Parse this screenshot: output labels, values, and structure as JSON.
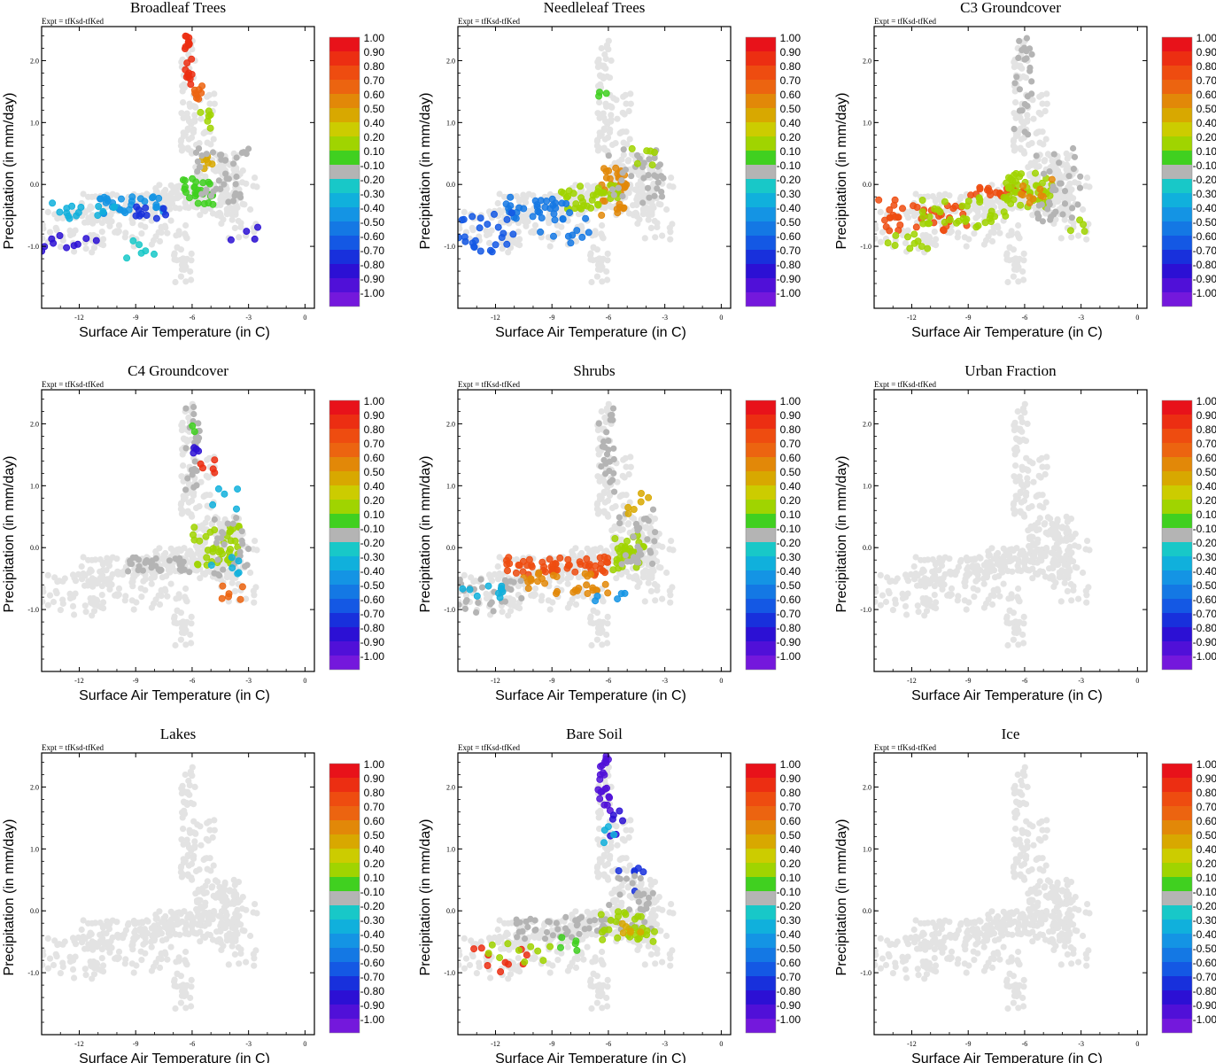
{
  "figure": {
    "expt_label": "Expt = tfKsd-tfKed",
    "xlabel": "Surface Air Temperature (in C)",
    "ylabel": "Precipitation (in mm/day)",
    "xlim": [
      -14,
      0.5
    ],
    "ylim": [
      -2.0,
      2.55
    ],
    "xticks": [
      -12,
      -9,
      -6,
      -3,
      0
    ],
    "yticks": [
      2.0,
      1.0,
      0.0,
      -1.0
    ],
    "xtick_labels": [
      "-12",
      "-9",
      "-6",
      "-3",
      "0"
    ],
    "ytick_labels": [
      "2.0",
      "1.0",
      "0.0",
      "-1.0"
    ]
  },
  "colorbar": {
    "labels": [
      "1.00",
      "0.90",
      "0.80",
      "0.70",
      "0.60",
      "0.50",
      "0.40",
      "0.20",
      "0.10",
      "-0.10",
      "-0.20",
      "-0.30",
      "-0.40",
      "-0.50",
      "-0.60",
      "-0.70",
      "-0.80",
      "-0.90",
      "-1.00"
    ],
    "colors": [
      "#e8121a",
      "#ec2e12",
      "#ee4c10",
      "#ec6410",
      "#e28808",
      "#d8a800",
      "#cccc00",
      "#a0d400",
      "#40d020",
      "#b4b4b4",
      "#18c8c8",
      "#10b0dc",
      "#1494e4",
      "#1478e4",
      "#1458e4",
      "#1830dc",
      "#2c10d4",
      "#5010d8",
      "#7418dc"
    ]
  },
  "colors": {
    "cloud": "#e3e3e3",
    "neutral": "#b4b4b4"
  },
  "chart_data": [
    {
      "type": "scatter",
      "title": "Broadleaf Trees",
      "xlabel": "Surface Air Temperature (in C)",
      "ylabel": "Precipitation (in mm/day)",
      "xlim": [
        -14,
        0.5
      ],
      "ylim": [
        -2.0,
        2.55
      ],
      "color_scale": [
        -1,
        1
      ],
      "clusters": [
        {
          "x": [
            -6.4,
            -6.0
          ],
          "y": [
            1.6,
            2.5
          ],
          "n": 20,
          "c": 0.9
        },
        {
          "x": [
            -6.0,
            -5.3
          ],
          "y": [
            1.3,
            1.7
          ],
          "n": 8,
          "c": 0.7
        },
        {
          "x": [
            -5.6,
            -4.6
          ],
          "y": [
            0.8,
            1.2
          ],
          "n": 6,
          "c": 0.3
        },
        {
          "x": [
            -5.5,
            -4.8
          ],
          "y": [
            0.2,
            0.5
          ],
          "n": 6,
          "c": 0.5
        },
        {
          "x": [
            -6.5,
            -4.8
          ],
          "y": [
            -0.35,
            0.1
          ],
          "n": 28,
          "c": 0.15
        },
        {
          "x": [
            -5.8,
            -3.0
          ],
          "y": [
            -0.3,
            0.6
          ],
          "n": 40,
          "c": 0.0
        },
        {
          "x": [
            -11.0,
            -7.5
          ],
          "y": [
            -0.5,
            -0.2
          ],
          "n": 30,
          "c": -0.4
        },
        {
          "x": [
            -13.5,
            -10.0
          ],
          "y": [
            -0.55,
            -0.3
          ],
          "n": 15,
          "c": -0.3
        },
        {
          "x": [
            -14.0,
            -11.0
          ],
          "y": [
            -1.1,
            -0.8
          ],
          "n": 10,
          "c": -0.8
        },
        {
          "x": [
            -9.0,
            -7.0
          ],
          "y": [
            -0.55,
            -0.35
          ],
          "n": 10,
          "c": -0.75
        },
        {
          "x": [
            -4.5,
            -2.5
          ],
          "y": [
            -0.9,
            -0.6
          ],
          "n": 4,
          "c": -0.8
        },
        {
          "x": [
            -10.0,
            -8.0
          ],
          "y": [
            -1.2,
            -0.8
          ],
          "n": 6,
          "c": -0.25
        }
      ]
    },
    {
      "type": "scatter",
      "title": "Needleleaf Trees",
      "xlabel": "Surface Air Temperature (in C)",
      "ylabel": "Precipitation (in mm/day)",
      "xlim": [
        -14,
        0.5
      ],
      "ylim": [
        -2.0,
        2.55
      ],
      "color_scale": [
        -1,
        1
      ],
      "clusters": [
        {
          "x": [
            -6.5,
            -5.0
          ],
          "y": [
            -0.5,
            0.3
          ],
          "n": 35,
          "c": 0.6
        },
        {
          "x": [
            -8.5,
            -5.5
          ],
          "y": [
            -0.4,
            0.0
          ],
          "n": 35,
          "c": 0.25
        },
        {
          "x": [
            -6.0,
            -3.0
          ],
          "y": [
            -0.3,
            0.6
          ],
          "n": 35,
          "c": 0.0
        },
        {
          "x": [
            -5.0,
            -3.5
          ],
          "y": [
            0.3,
            0.6
          ],
          "n": 6,
          "c": 0.3
        },
        {
          "x": [
            -11.5,
            -8.0
          ],
          "y": [
            -0.6,
            -0.2
          ],
          "n": 30,
          "c": -0.5
        },
        {
          "x": [
            -14.0,
            -11.0
          ],
          "y": [
            -1.1,
            -0.4
          ],
          "n": 25,
          "c": -0.65
        },
        {
          "x": [
            -10.0,
            -7.0
          ],
          "y": [
            -1.0,
            -0.5
          ],
          "n": 12,
          "c": -0.55
        },
        {
          "x": [
            -6.6,
            -6.0
          ],
          "y": [
            1.2,
            1.5
          ],
          "n": 3,
          "c": 0.15
        }
      ]
    },
    {
      "type": "scatter",
      "title": "C3 Groundcover",
      "xlabel": "Surface Air Temperature (in C)",
      "ylabel": "Precipitation (in mm/day)",
      "xlim": [
        -14,
        0.5
      ],
      "ylim": [
        -2.0,
        2.55
      ],
      "color_scale": [
        -1,
        1
      ],
      "clusters": [
        {
          "x": [
            -13.8,
            -9.0
          ],
          "y": [
            -0.75,
            -0.25
          ],
          "n": 40,
          "c": 0.8
        },
        {
          "x": [
            -9.0,
            -6.0
          ],
          "y": [
            -0.2,
            -0.05
          ],
          "n": 20,
          "c": 0.8
        },
        {
          "x": [
            -11.5,
            -7.0
          ],
          "y": [
            -0.7,
            -0.2
          ],
          "n": 35,
          "c": 0.25
        },
        {
          "x": [
            -7.0,
            -4.5
          ],
          "y": [
            -0.4,
            0.2
          ],
          "n": 45,
          "c": 0.2
        },
        {
          "x": [
            -6.5,
            -4.5
          ],
          "y": [
            -0.3,
            0.1
          ],
          "n": 10,
          "c": 0.55
        },
        {
          "x": [
            -5.5,
            -3.0
          ],
          "y": [
            -0.6,
            0.6
          ],
          "n": 35,
          "c": 0.0
        },
        {
          "x": [
            -6.6,
            -5.6
          ],
          "y": [
            0.8,
            2.4
          ],
          "n": 25,
          "c": 0.0
        },
        {
          "x": [
            -13.5,
            -11.0
          ],
          "y": [
            -1.05,
            -0.8
          ],
          "n": 10,
          "c": 0.2
        },
        {
          "x": [
            -4.0,
            -2.5
          ],
          "y": [
            -0.5,
            -0.8
          ],
          "n": 4,
          "c": 0.25
        }
      ]
    },
    {
      "type": "scatter",
      "title": "C4 Groundcover",
      "xlabel": "Surface Air Temperature (in C)",
      "ylabel": "Precipitation (in mm/day)",
      "xlim": [
        -14,
        0.5
      ],
      "ylim": [
        -2.0,
        2.55
      ],
      "color_scale": [
        -1,
        1
      ],
      "clusters": [
        {
          "x": [
            -9.5,
            -6.0
          ],
          "y": [
            -0.4,
            -0.15
          ],
          "n": 35,
          "c": 0.0
        },
        {
          "x": [
            -6.4,
            -5.6
          ],
          "y": [
            0.9,
            2.3
          ],
          "n": 25,
          "c": 0.0
        },
        {
          "x": [
            -6.0,
            -3.5
          ],
          "y": [
            -0.3,
            0.4
          ],
          "n": 40,
          "c": 0.35
        },
        {
          "x": [
            -5.5,
            -3.0
          ],
          "y": [
            -0.5,
            0.5
          ],
          "n": 25,
          "c": 0.0
        },
        {
          "x": [
            -5.8,
            -4.8
          ],
          "y": [
            1.2,
            1.5
          ],
          "n": 5,
          "c": 0.85
        },
        {
          "x": [
            -6.4,
            -5.6
          ],
          "y": [
            1.5,
            1.7
          ],
          "n": 4,
          "c": -0.85
        },
        {
          "x": [
            -5.5,
            -3.5
          ],
          "y": [
            0.6,
            1.1
          ],
          "n": 5,
          "c": -0.3
        },
        {
          "x": [
            -4.5,
            -3.0
          ],
          "y": [
            -0.95,
            -0.6
          ],
          "n": 6,
          "c": 0.65
        },
        {
          "x": [
            -5.0,
            -3.5
          ],
          "y": [
            -0.5,
            -0.1
          ],
          "n": 6,
          "c": -0.3
        },
        {
          "x": [
            -6.3,
            -5.7
          ],
          "y": [
            1.8,
            2.0
          ],
          "n": 2,
          "c": 0.15
        }
      ]
    },
    {
      "type": "scatter",
      "title": "Shrubs",
      "xlabel": "Surface Air Temperature (in C)",
      "ylabel": "Precipitation (in mm/day)",
      "xlim": [
        -14,
        0.5
      ],
      "ylim": [
        -2.0,
        2.55
      ],
      "color_scale": [
        -1,
        1
      ],
      "clusters": [
        {
          "x": [
            -11.5,
            -6.0
          ],
          "y": [
            -0.45,
            -0.15
          ],
          "n": 55,
          "c": 0.75
        },
        {
          "x": [
            -10.5,
            -6.0
          ],
          "y": [
            -0.75,
            -0.35
          ],
          "n": 30,
          "c": 0.55
        },
        {
          "x": [
            -6.0,
            -4.0
          ],
          "y": [
            -0.4,
            0.2
          ],
          "n": 35,
          "c": 0.3
        },
        {
          "x": [
            -14.0,
            -10.5
          ],
          "y": [
            -1.05,
            -0.5
          ],
          "n": 30,
          "c": 0.0
        },
        {
          "x": [
            -14.0,
            -11.5
          ],
          "y": [
            -0.85,
            -0.6
          ],
          "n": 10,
          "c": -0.3
        },
        {
          "x": [
            -6.5,
            -5.6
          ],
          "y": [
            0.8,
            2.3
          ],
          "n": 25,
          "c": 0.0
        },
        {
          "x": [
            -5.5,
            -3.5
          ],
          "y": [
            -0.3,
            0.7
          ],
          "n": 30,
          "c": 0.0
        },
        {
          "x": [
            -5.0,
            -3.5
          ],
          "y": [
            0.3,
            0.9
          ],
          "n": 6,
          "c": 0.5
        },
        {
          "x": [
            -7.0,
            -5.0
          ],
          "y": [
            -1.0,
            -0.6
          ],
          "n": 5,
          "c": -0.4
        }
      ]
    },
    {
      "type": "scatter",
      "title": "Urban Fraction",
      "xlabel": "Surface Air Temperature (in C)",
      "ylabel": "Precipitation (in mm/day)",
      "xlim": [
        -14,
        0.5
      ],
      "ylim": [
        -2.0,
        2.55
      ],
      "color_scale": [
        -1,
        1
      ],
      "clusters": []
    },
    {
      "type": "scatter",
      "title": "Lakes",
      "xlabel": "Surface Air Temperature (in C)",
      "ylabel": "Precipitation (in mm/day)",
      "xlim": [
        -14,
        0.5
      ],
      "ylim": [
        -2.0,
        2.55
      ],
      "color_scale": [
        -1,
        1
      ],
      "clusters": []
    },
    {
      "type": "scatter",
      "title": "Bare Soil",
      "xlabel": "Surface Air Temperature (in C)",
      "ylabel": "Precipitation (in mm/day)",
      "xlim": [
        -14,
        0.5
      ],
      "ylim": [
        -2.0,
        2.55
      ],
      "color_scale": [
        -1,
        1
      ],
      "clusters": [
        {
          "x": [
            -6.6,
            -5.9
          ],
          "y": [
            1.6,
            2.5
          ],
          "n": 22,
          "c": -0.95
        },
        {
          "x": [
            -6.0,
            -5.0
          ],
          "y": [
            1.2,
            1.7
          ],
          "n": 6,
          "c": -0.8
        },
        {
          "x": [
            -6.3,
            -5.5
          ],
          "y": [
            1.1,
            1.4
          ],
          "n": 4,
          "c": -0.3
        },
        {
          "x": [
            -5.5,
            -4.0
          ],
          "y": [
            0.3,
            0.7
          ],
          "n": 6,
          "c": -0.7
        },
        {
          "x": [
            -11.0,
            -6.0
          ],
          "y": [
            -0.45,
            -0.1
          ],
          "n": 45,
          "c": 0.0
        },
        {
          "x": [
            -6.0,
            -3.5
          ],
          "y": [
            -0.3,
            0.6
          ],
          "n": 30,
          "c": 0.0
        },
        {
          "x": [
            -6.5,
            -3.5
          ],
          "y": [
            -0.5,
            0.0
          ],
          "n": 30,
          "c": 0.25
        },
        {
          "x": [
            -5.5,
            -4.0
          ],
          "y": [
            -0.4,
            -0.2
          ],
          "n": 6,
          "c": 0.5
        },
        {
          "x": [
            -13.5,
            -10.0
          ],
          "y": [
            -1.0,
            -0.6
          ],
          "n": 10,
          "c": 0.9
        },
        {
          "x": [
            -13.0,
            -9.0
          ],
          "y": [
            -0.9,
            -0.5
          ],
          "n": 10,
          "c": 0.2
        },
        {
          "x": [
            -9.0,
            -7.5
          ],
          "y": [
            -0.7,
            -0.4
          ],
          "n": 5,
          "c": 0.15
        }
      ]
    },
    {
      "type": "scatter",
      "title": "Ice",
      "xlabel": "Surface Air Temperature (in C)",
      "ylabel": "Precipitation (in mm/day)",
      "xlim": [
        -14,
        0.5
      ],
      "ylim": [
        -2.0,
        2.55
      ],
      "color_scale": [
        -1,
        1
      ],
      "clusters": []
    }
  ]
}
